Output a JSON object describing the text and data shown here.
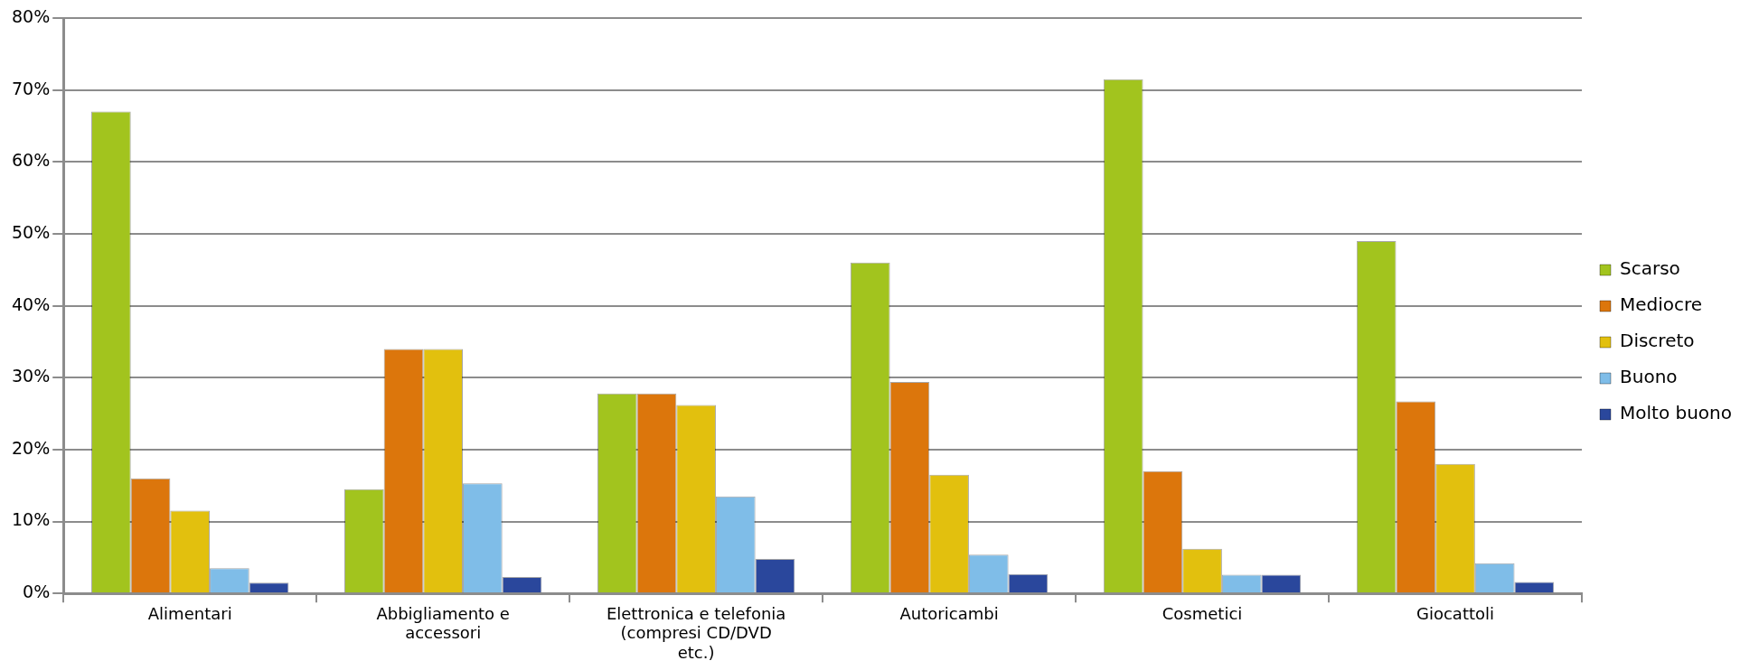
{
  "chart_data": {
    "type": "bar",
    "categories": [
      "Alimentari",
      "Abbigliamento e accessori",
      "Elettronica e telefonia (compresi CD/DVD etc.)",
      "Autoricambi",
      "Cosmetici",
      "Giocattoli"
    ],
    "series": [
      {
        "name": "Scarso",
        "color": "#a2c41e",
        "values": [
          67,
          14.5,
          27.8,
          46,
          71.5,
          49
        ]
      },
      {
        "name": "Mediocre",
        "color": "#dc760c",
        "values": [
          16,
          34,
          27.8,
          29.4,
          17,
          26.7
        ]
      },
      {
        "name": "Discreto",
        "color": "#e2c00e",
        "values": [
          11.5,
          34,
          26.2,
          16.5,
          6.2,
          18
        ]
      },
      {
        "name": "Buono",
        "color": "#7fbde8",
        "values": [
          3.5,
          15.3,
          13.5,
          5.4,
          2.6,
          4.2
        ]
      },
      {
        "name": "Molto buono",
        "color": "#2a479c",
        "values": [
          1.5,
          2.3,
          4.8,
          2.7,
          2.6,
          1.6
        ]
      }
    ],
    "ylim": [
      0,
      80
    ],
    "yticks": [
      {
        "value": 0,
        "label": "0%"
      },
      {
        "value": 10,
        "label": "10%"
      },
      {
        "value": 20,
        "label": "20%"
      },
      {
        "value": 30,
        "label": "30%"
      },
      {
        "value": 40,
        "label": "40%"
      },
      {
        "value": 50,
        "label": "50%"
      },
      {
        "value": 60,
        "label": "60%"
      },
      {
        "value": 70,
        "label": "70%"
      },
      {
        "value": 80,
        "label": "80%"
      }
    ],
    "grid": "y",
    "legend": "right"
  }
}
